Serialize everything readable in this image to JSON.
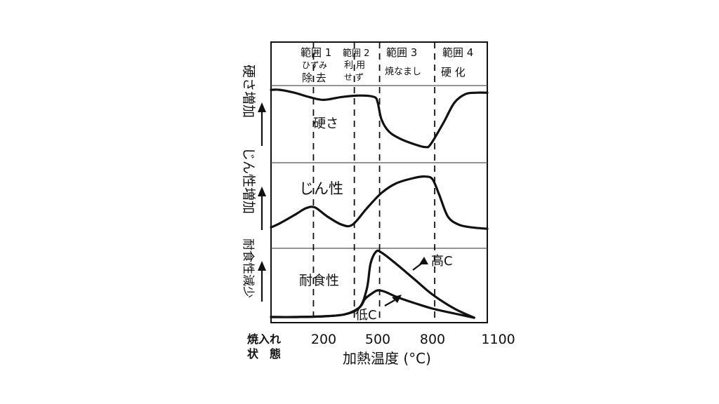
{
  "chart_data": {
    "type": "line",
    "x_axis": {
      "label": "加熱温度 (°C)",
      "ticks": [
        {
          "value": 200,
          "label": "200"
        },
        {
          "value": 500,
          "label": "500"
        },
        {
          "value": 800,
          "label": "800"
        },
        {
          "value": 1100,
          "label": "1100"
        }
      ],
      "origin_label_line1": "焼入れ",
      "origin_label_line2": "状　態"
    },
    "ranges": [
      {
        "id": 1,
        "line1": "範囲 1",
        "line2": "ひずみ",
        "line3": "除 去"
      },
      {
        "id": 2,
        "line1": "範囲 2",
        "line2": "利 用",
        "line3": "せ ず"
      },
      {
        "id": 3,
        "line1": "範囲 3",
        "line2": "焼なまし"
      },
      {
        "id": 4,
        "line1": "範囲 4",
        "line2": "硬 化"
      }
    ],
    "range_boundaries": [
      130,
      370,
      510,
      810
    ],
    "panels": [
      {
        "id": "hardness",
        "ylabel": "硬さ増加",
        "curve_label": "硬さ",
        "series": [
          {
            "name": "硬さ",
            "points": [
              [
                -160,
                0.96
              ],
              [
                -100,
                0.96
              ],
              [
                0,
                0.92
              ],
              [
                100,
                0.86
              ],
              [
                200,
                0.82
              ],
              [
                300,
                0.86
              ],
              [
                400,
                0.88
              ],
              [
                480,
                0.86
              ],
              [
                500,
                0.78
              ],
              [
                520,
                0.55
              ],
              [
                560,
                0.38
              ],
              [
                620,
                0.28
              ],
              [
                700,
                0.2
              ],
              [
                760,
                0.16
              ],
              [
                790,
                0.2
              ],
              [
                850,
                0.5
              ],
              [
                900,
                0.78
              ],
              [
                950,
                0.9
              ],
              [
                1000,
                0.92
              ],
              [
                1050,
                0.92
              ]
            ]
          }
        ]
      },
      {
        "id": "toughness",
        "ylabel": "じん性増加",
        "curve_label": "じん性",
        "series": [
          {
            "name": "じん性",
            "points": [
              [
                -160,
                0.12
              ],
              [
                -100,
                0.18
              ],
              [
                0,
                0.3
              ],
              [
                80,
                0.4
              ],
              [
                140,
                0.41
              ],
              [
                220,
                0.28
              ],
              [
                300,
                0.16
              ],
              [
                360,
                0.16
              ],
              [
                440,
                0.4
              ],
              [
                520,
                0.62
              ],
              [
                600,
                0.76
              ],
              [
                700,
                0.84
              ],
              [
                760,
                0.86
              ],
              [
                800,
                0.82
              ],
              [
                830,
                0.6
              ],
              [
                870,
                0.28
              ],
              [
                920,
                0.16
              ],
              [
                980,
                0.12
              ],
              [
                1050,
                0.1
              ]
            ]
          }
        ]
      },
      {
        "id": "corrosion",
        "ylabel": "耐食性減少",
        "curve_label": "耐食性",
        "series": [
          {
            "name": "高C",
            "points": [
              [
                -160,
                0.04
              ],
              [
                0,
                0.04
              ],
              [
                200,
                0.05
              ],
              [
                320,
                0.08
              ],
              [
                400,
                0.18
              ],
              [
                440,
                0.45
              ],
              [
                460,
                0.8
              ],
              [
                490,
                0.97
              ],
              [
                520,
                0.96
              ],
              [
                600,
                0.8
              ],
              [
                700,
                0.58
              ],
              [
                800,
                0.36
              ],
              [
                900,
                0.16
              ],
              [
                990,
                0.03
              ]
            ]
          },
          {
            "name": "低C",
            "points": [
              [
                -160,
                0.04
              ],
              [
                0,
                0.04
              ],
              [
                200,
                0.05
              ],
              [
                320,
                0.08
              ],
              [
                400,
                0.18
              ],
              [
                430,
                0.3
              ],
              [
                470,
                0.38
              ],
              [
                500,
                0.42
              ],
              [
                540,
                0.4
              ],
              [
                600,
                0.33
              ],
              [
                700,
                0.24
              ],
              [
                800,
                0.16
              ],
              [
                900,
                0.09
              ],
              [
                990,
                0.03
              ]
            ]
          }
        ],
        "series_labels": [
          "高C",
          "低C"
        ]
      }
    ]
  }
}
